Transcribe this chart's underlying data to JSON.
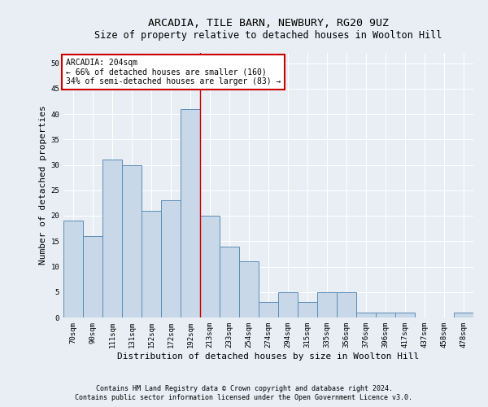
{
  "title": "ARCADIA, TILE BARN, NEWBURY, RG20 9UZ",
  "subtitle": "Size of property relative to detached houses in Woolton Hill",
  "xlabel": "Distribution of detached houses by size in Woolton Hill",
  "ylabel": "Number of detached properties",
  "footnote1": "Contains HM Land Registry data © Crown copyright and database right 2024.",
  "footnote2": "Contains public sector information licensed under the Open Government Licence v3.0.",
  "categories": [
    "70sqm",
    "90sqm",
    "111sqm",
    "131sqm",
    "152sqm",
    "172sqm",
    "192sqm",
    "213sqm",
    "233sqm",
    "254sqm",
    "274sqm",
    "294sqm",
    "315sqm",
    "335sqm",
    "356sqm",
    "376sqm",
    "396sqm",
    "417sqm",
    "437sqm",
    "458sqm",
    "478sqm"
  ],
  "values": [
    19,
    16,
    31,
    30,
    21,
    23,
    41,
    20,
    14,
    11,
    3,
    5,
    3,
    5,
    5,
    1,
    1,
    1,
    0,
    0,
    1
  ],
  "bar_color": "#c8d8e8",
  "bar_edge_color": "#5b8db8",
  "vline_x_index": 7,
  "vline_color": "#cc0000",
  "annotation_title": "ARCADIA: 204sqm",
  "annotation_line1": "← 66% of detached houses are smaller (160)",
  "annotation_line2": "34% of semi-detached houses are larger (83) →",
  "annotation_box_color": "#ffffff",
  "annotation_box_edge": "#cc0000",
  "ylim": [
    0,
    52
  ],
  "yticks": [
    0,
    5,
    10,
    15,
    20,
    25,
    30,
    35,
    40,
    45,
    50
  ],
  "background_color": "#e8eef4",
  "plot_background": "#e8eef4",
  "grid_color": "#ffffff",
  "title_fontsize": 9.5,
  "subtitle_fontsize": 8.5,
  "axis_label_fontsize": 8,
  "tick_fontsize": 6.5,
  "annotation_fontsize": 7,
  "footnote_fontsize": 6
}
